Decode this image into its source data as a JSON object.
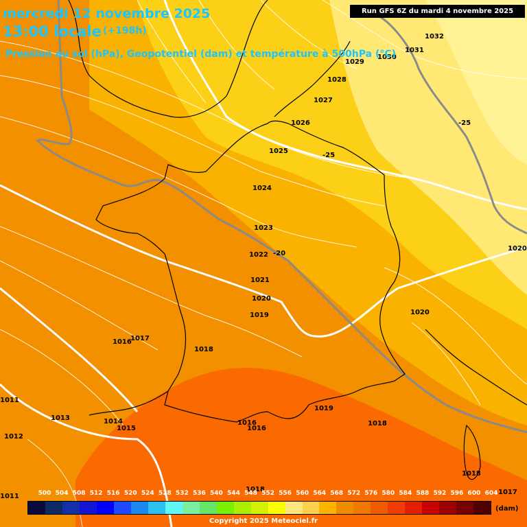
{
  "header": {
    "date": "mercredi 12 novembre 2025",
    "time": "13:00 locale",
    "lead": "(+198h)",
    "params": "Pression au sol (hPa), Geopotentiel (dam) et température à 500hPa (°C)",
    "run": "Run GFS 6Z du mardi 4 novembre 2025"
  },
  "zones": {
    "lowest": "#f39000",
    "z564": "#f9b200",
    "z568": "#fdd018",
    "z572": "#ffe873",
    "z576": "#fff396",
    "z560": "#f78500",
    "z556": "#fb6a00",
    "boundary_line": "#ffffff",
    "isotherm_line": "#8a8a8a",
    "coast_line": "#000000"
  },
  "isobars": [
    "1032",
    "1031",
    "1030",
    "1029",
    "1028",
    "1027",
    "1026",
    "1025",
    "1024",
    "1023",
    "1022",
    "1021",
    "1020",
    "1019",
    "1018",
    "1017",
    "1016",
    "1015",
    "1014",
    "1013",
    "1012",
    "1011",
    "1020",
    "1020",
    "1018",
    "1019",
    "1018",
    "1016",
    "1016",
    "1018",
    "1017",
    "1011"
  ],
  "isotherms": [
    "-25",
    "-25",
    "-20"
  ],
  "scale": {
    "labels": [
      "500",
      "504",
      "508",
      "512",
      "516",
      "520",
      "524",
      "528",
      "532",
      "536",
      "540",
      "544",
      "548",
      "552",
      "556",
      "560",
      "564",
      "568",
      "572",
      "576",
      "580",
      "584",
      "588",
      "592",
      "596",
      "600",
      "604"
    ],
    "colors": [
      "#0a0a3c",
      "#0e2a64",
      "#1430a8",
      "#1414d8",
      "#0000ff",
      "#1e4bff",
      "#1a88f0",
      "#2bc0f0",
      "#5ef6f6",
      "#78f0a0",
      "#64e664",
      "#78f000",
      "#aaf000",
      "#d2f000",
      "#ffff00",
      "#ffe67a",
      "#ffd04a",
      "#ffb400",
      "#f08c00",
      "#f07800",
      "#f05a00",
      "#f03c00",
      "#e61e00",
      "#c80000",
      "#a00000",
      "#780000",
      "#500000"
    ],
    "unit": "(dam)"
  },
  "copyright": "Copyright 2025 Meteociel.fr"
}
